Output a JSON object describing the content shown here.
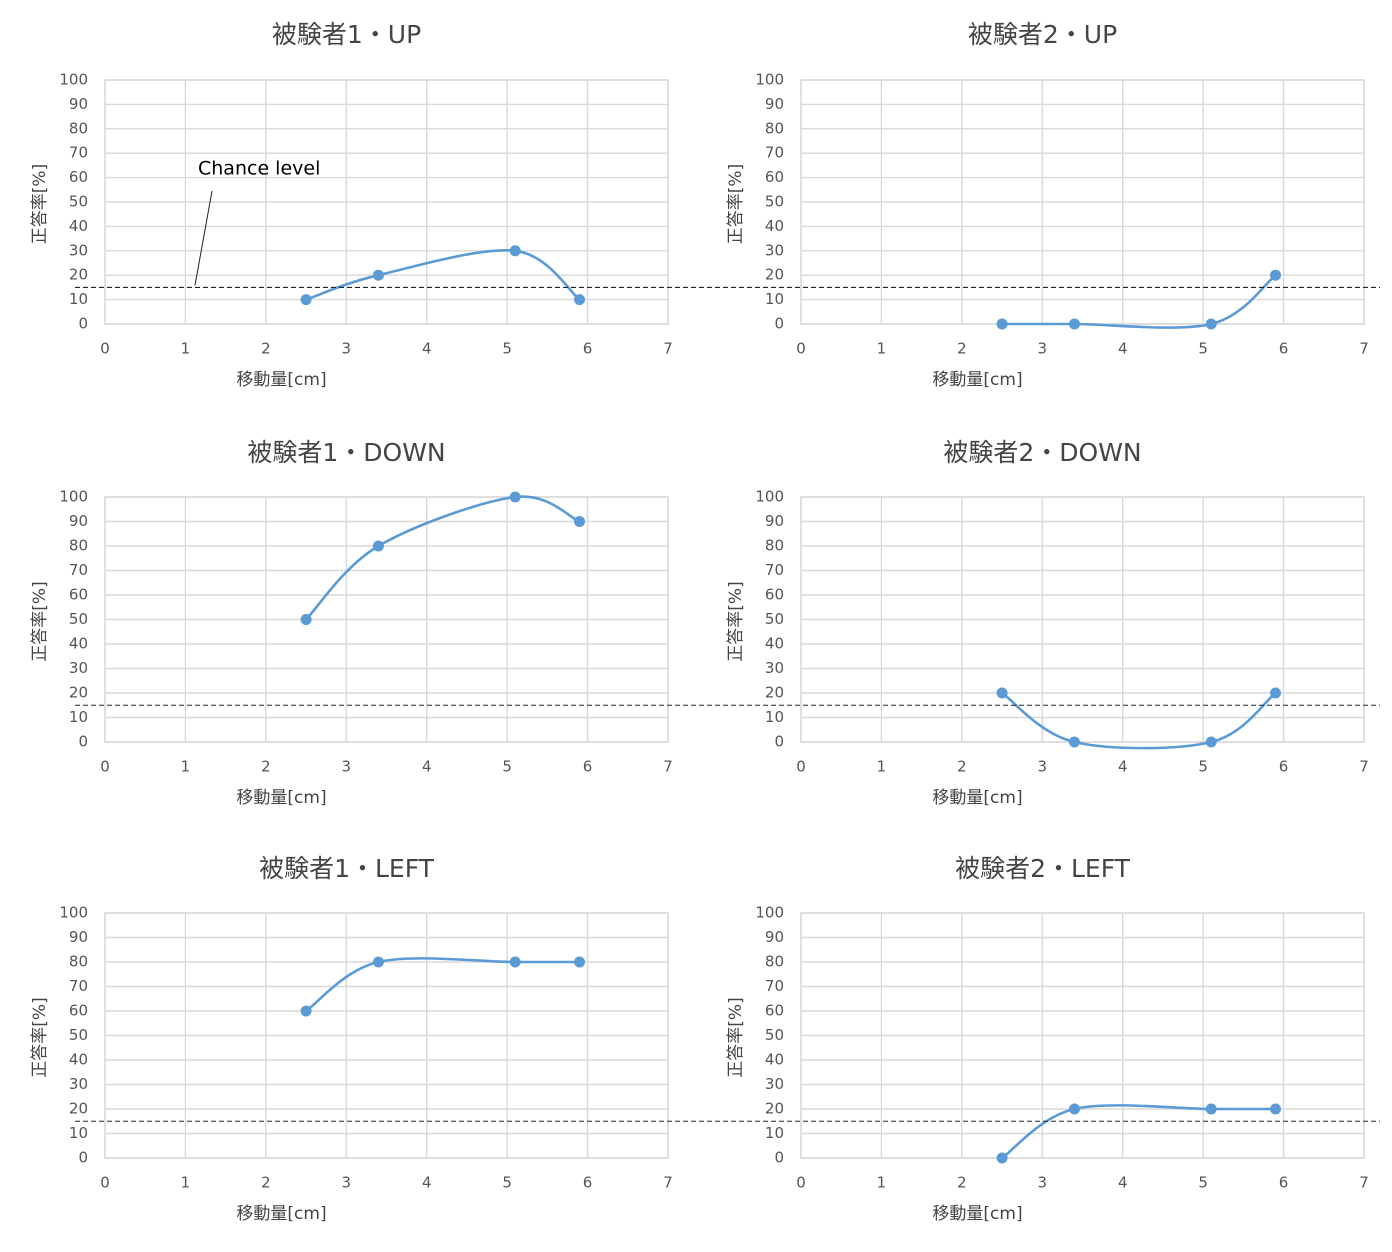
{
  "figure": {
    "chance_annotation": "Chance level"
  },
  "chart_data": [
    {
      "type": "line",
      "title": "被験者1・UP",
      "xlabel": "移動量[cm]",
      "ylabel": "正答率[%]",
      "xlim": [
        0,
        7
      ],
      "ylim": [
        0,
        100
      ],
      "xticks": [
        "0",
        "1",
        "2",
        "3",
        "4",
        "5",
        "6",
        "7"
      ],
      "yticks": [
        "0",
        "10",
        "20",
        "30",
        "40",
        "50",
        "60",
        "70",
        "80",
        "90",
        "100"
      ],
      "grid": true,
      "chance_level": 15,
      "series": [
        {
          "x": [
            2.5,
            3.4,
            5.1,
            5.9
          ],
          "values": [
            10,
            20,
            30,
            10
          ]
        }
      ]
    },
    {
      "type": "line",
      "title": "被験者2・UP",
      "xlabel": "移動量[cm]",
      "ylabel": "正答率[%]",
      "xlim": [
        0,
        7
      ],
      "ylim": [
        0,
        100
      ],
      "xticks": [
        "0",
        "1",
        "2",
        "3",
        "4",
        "5",
        "6",
        "7"
      ],
      "yticks": [
        "0",
        "10",
        "20",
        "30",
        "40",
        "50",
        "60",
        "70",
        "80",
        "90",
        "100"
      ],
      "grid": true,
      "chance_level": 15,
      "series": [
        {
          "x": [
            2.5,
            3.4,
            5.1,
            5.9
          ],
          "values": [
            0,
            0,
            0,
            20
          ]
        }
      ]
    },
    {
      "type": "line",
      "title": "被験者1・DOWN",
      "xlabel": "移動量[cm]",
      "ylabel": "正答率[%]",
      "xlim": [
        0,
        7
      ],
      "ylim": [
        0,
        100
      ],
      "xticks": [
        "0",
        "1",
        "2",
        "3",
        "4",
        "5",
        "6",
        "7"
      ],
      "yticks": [
        "0",
        "10",
        "20",
        "30",
        "40",
        "50",
        "60",
        "70",
        "80",
        "90",
        "100"
      ],
      "grid": true,
      "chance_level": 15,
      "series": [
        {
          "x": [
            2.5,
            3.4,
            5.1,
            5.9
          ],
          "values": [
            50,
            80,
            100,
            90
          ]
        }
      ]
    },
    {
      "type": "line",
      "title": "被験者2・DOWN",
      "xlabel": "移動量[cm]",
      "ylabel": "正答率[%]",
      "xlim": [
        0,
        7
      ],
      "ylim": [
        0,
        100
      ],
      "xticks": [
        "0",
        "1",
        "2",
        "3",
        "4",
        "5",
        "6",
        "7"
      ],
      "yticks": [
        "0",
        "10",
        "20",
        "30",
        "40",
        "50",
        "60",
        "70",
        "80",
        "90",
        "100"
      ],
      "grid": true,
      "chance_level": 15,
      "series": [
        {
          "x": [
            2.5,
            3.4,
            5.1,
            5.9
          ],
          "values": [
            20,
            0,
            0,
            20
          ]
        }
      ]
    },
    {
      "type": "line",
      "title": "被験者1・LEFT",
      "xlabel": "移動量[cm]",
      "ylabel": "正答率[%]",
      "xlim": [
        0,
        7
      ],
      "ylim": [
        0,
        100
      ],
      "xticks": [
        "0",
        "1",
        "2",
        "3",
        "4",
        "5",
        "6",
        "7"
      ],
      "yticks": [
        "0",
        "10",
        "20",
        "30",
        "40",
        "50",
        "60",
        "70",
        "80",
        "90",
        "100"
      ],
      "grid": true,
      "chance_level": 15,
      "series": [
        {
          "x": [
            2.5,
            3.4,
            5.1,
            5.9
          ],
          "values": [
            60,
            80,
            80,
            80
          ]
        }
      ]
    },
    {
      "type": "line",
      "title": "被験者2・LEFT",
      "xlabel": "移動量[cm]",
      "ylabel": "正答率[%]",
      "xlim": [
        0,
        7
      ],
      "ylim": [
        0,
        100
      ],
      "xticks": [
        "0",
        "1",
        "2",
        "3",
        "4",
        "5",
        "6",
        "7"
      ],
      "yticks": [
        "0",
        "10",
        "20",
        "30",
        "40",
        "50",
        "60",
        "70",
        "80",
        "90",
        "100"
      ],
      "grid": true,
      "chance_level": 15,
      "series": [
        {
          "x": [
            2.5,
            3.4,
            5.1,
            5.9
          ],
          "values": [
            0,
            20,
            20,
            20
          ]
        }
      ]
    }
  ]
}
